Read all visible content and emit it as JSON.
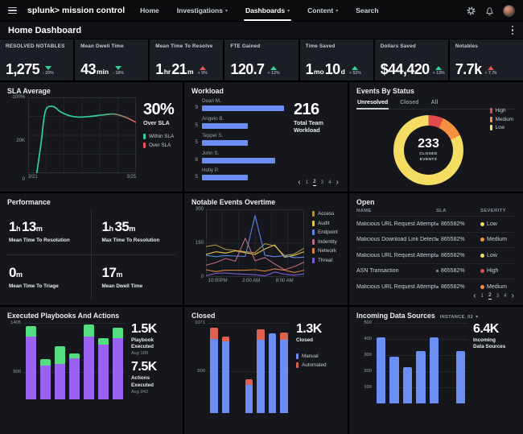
{
  "colors": {
    "green": "#2ed196",
    "red": "#e05656",
    "blue": "#6c8df2",
    "purple": "#9a62f0",
    "bar_green": "#55dd82",
    "salmon": "#e0604f",
    "yellow": "#f5dd64",
    "orange": "#f69141",
    "high_red": "#e24b4b"
  },
  "nav": {
    "logo": "splunk>",
    "logo_suffix": "mission control",
    "items": [
      {
        "label": "Home"
      },
      {
        "label": "Investigations",
        "dropdown": true
      },
      {
        "label": "Dashboards",
        "dropdown": true,
        "active": true
      },
      {
        "label": "Content",
        "dropdown": true
      },
      {
        "label": "Search"
      }
    ]
  },
  "header": {
    "title": "Home Dashboard"
  },
  "kpis": [
    {
      "label": "RESOLVED NOTABLES",
      "parts": [
        {
          "n": "1,275"
        }
      ],
      "trend": "down",
      "trend_color": "green",
      "delta": "- 20%"
    },
    {
      "label": "Mean Dwell Time",
      "parts": [
        {
          "n": "43",
          "u": "min"
        }
      ],
      "trend": "down",
      "trend_color": "green",
      "delta": "- 18%"
    },
    {
      "label": "Mean Time To Resolve",
      "parts": [
        {
          "n": "1",
          "u": "hr"
        },
        {
          "n": "21",
          "u": "m"
        }
      ],
      "trend": "up",
      "trend_color": "red",
      "delta": "+ 9%"
    },
    {
      "label": "FTE Gained",
      "parts": [
        {
          "n": "120.7"
        }
      ],
      "trend": "up",
      "trend_color": "green",
      "delta": "+ 12%"
    },
    {
      "label": "Time Saved",
      "parts": [
        {
          "n": "1",
          "u": "mo"
        },
        {
          "n": "10",
          "u": "d"
        }
      ],
      "trend": "up",
      "trend_color": "green",
      "delta": "+ 52%"
    },
    {
      "label": "Dollars Saved",
      "parts": [
        {
          "n": "$44,420"
        }
      ],
      "trend": "up",
      "trend_color": "green",
      "delta": "+ 13%"
    },
    {
      "label": "Notables",
      "parts": [
        {
          "n": "7.7k"
        }
      ],
      "trend": "up",
      "trend_color": "red",
      "delta": "+ 7.7k"
    }
  ],
  "panels": {
    "sla": {
      "title": "SLA Average",
      "big_value": "30%",
      "big_label": "Over SLA",
      "legend": [
        {
          "label": "Within SLA",
          "color": "#2ed196"
        },
        {
          "label": "Over SLA",
          "color": "#e05656"
        }
      ],
      "chart_data": {
        "type": "line",
        "yticks": [
          {
            "label": "-100%",
            "pos": 0
          },
          {
            "label": "20K",
            "pos": 53
          },
          {
            "label": "0",
            "pos": 100
          }
        ],
        "xticks": [
          "3/21",
          "3/25"
        ],
        "gradient": [
          [
            0,
            "#2ed196"
          ],
          [
            0.62,
            "#2ed196"
          ],
          [
            1,
            "#e05656"
          ]
        ],
        "points": [
          [
            8,
            0
          ],
          [
            12,
            40
          ],
          [
            16,
            82
          ],
          [
            23,
            88
          ],
          [
            30,
            81
          ],
          [
            38,
            76
          ],
          [
            46,
            74
          ],
          [
            58,
            75
          ],
          [
            70,
            77
          ],
          [
            80,
            78
          ],
          [
            90,
            74
          ],
          [
            100,
            67
          ]
        ]
      }
    },
    "workload": {
      "title": "Workload",
      "big_value": "216",
      "big_label": "Total Team Workload",
      "chart_data": {
        "type": "bar-h",
        "bar_color": "#6c8df2",
        "max": 9.5,
        "rows": [
          {
            "name": "Dean M.",
            "value": 9
          },
          {
            "name": "Angelo B.",
            "value": 5
          },
          {
            "name": "Teppei S.",
            "value": 5
          },
          {
            "name": "John S.",
            "value": 8
          },
          {
            "name": "Holly P.",
            "value": 5
          }
        ]
      },
      "pagination": {
        "prev": "‹",
        "next": "›",
        "pages": [
          "1",
          "2",
          "3",
          "4"
        ],
        "active": "2"
      }
    },
    "events": {
      "title": "Events By Status",
      "tabs": [
        {
          "label": "Unresolved",
          "active": true
        },
        {
          "label": "Closed"
        },
        {
          "label": "All"
        }
      ],
      "center_value": "233",
      "center_label": "CLOSED EVENTS",
      "chart_data": {
        "type": "pie",
        "slices": [
          {
            "label": "High",
            "value": 7,
            "color": "#e24b4b"
          },
          {
            "label": "Medium",
            "value": 11,
            "color": "#f69141"
          },
          {
            "label": "Low",
            "value": 82,
            "color": "#f5dd64"
          }
        ]
      }
    },
    "performance": {
      "title": "Performance",
      "stats": [
        {
          "parts": [
            {
              "n": "1",
              "u": "h"
            },
            {
              "n": "13",
              "u": "m"
            }
          ],
          "label": "Mean Time To Resolution"
        },
        {
          "parts": [
            {
              "n": "1",
              "u": "h"
            },
            {
              "n": "35",
              "u": "m"
            }
          ],
          "label": "Max Time To Resolution"
        },
        {
          "parts": [
            {
              "n": "0",
              "u": "m"
            }
          ],
          "label": "Mean Time To Triage"
        },
        {
          "parts": [
            {
              "n": "17",
              "u": "m"
            }
          ],
          "label": "Mean Dwell Time"
        }
      ]
    },
    "overtime": {
      "title": "Notable Events Overtime",
      "chart_data": {
        "type": "line-multi",
        "ylim": [
          0,
          300
        ],
        "yticks": [
          {
            "label": "300",
            "pos": 0
          },
          {
            "label": "150",
            "pos": 50
          },
          {
            "label": "0",
            "pos": 100
          }
        ],
        "xticks": [
          {
            "label": "10:00PM",
            "pos": 12
          },
          {
            "label": "2:00 AM",
            "pos": 46
          },
          {
            "label": "8:00 AM",
            "pos": 80
          }
        ],
        "series": [
          {
            "name": "Access",
            "color": "#ad9141",
            "values": [
              135,
              142,
              122,
              118,
              112,
              108,
              148,
              138,
              95,
              102,
              128
            ]
          },
          {
            "name": "Audit",
            "color": "#e6c84e",
            "values": [
              100,
              112,
              106,
              116,
              108,
              100,
              124,
              142,
              88,
              96,
              112
            ]
          },
          {
            "name": "Endpoint",
            "color": "#5d85e6",
            "values": [
              96,
              90,
              95,
              93,
              91,
              272,
              96,
              90,
              95,
              86,
              88
            ]
          },
          {
            "name": "Indentity",
            "color": "#c06a80",
            "values": [
              52,
              64,
              82,
              70,
              172,
              72,
              86,
              58,
              32,
              46,
              66
            ]
          },
          {
            "name": "Network",
            "color": "#d9823f",
            "values": [
              32,
              24,
              30,
              30,
              30,
              32,
              26,
              36,
              30,
              20,
              30
            ]
          },
          {
            "name": "Threat",
            "color": "#8059d6",
            "values": [
              6,
              16,
              18,
              14,
              12,
              10,
              5,
              22,
              12,
              8,
              14
            ]
          }
        ]
      }
    },
    "open": {
      "title": "Open",
      "columns": [
        "NAME",
        "SLA",
        "SEVERITY"
      ],
      "rows": [
        {
          "name": "Malicious URL Request Attempt",
          "sla": "865582%",
          "severity": "Low",
          "severity_color": "#f5dd64"
        },
        {
          "name": "Malicious Download Link Detected",
          "sla": "865582%",
          "severity": "Medium",
          "severity_color": "#f69141"
        },
        {
          "name": "Malicious URL Request Attempt",
          "sla": "865582%",
          "severity": "Low",
          "severity_color": "#f5dd64"
        },
        {
          "name": "ASN Transaction",
          "sla": "865582%",
          "severity": "High",
          "severity_color": "#e24b4b"
        },
        {
          "name": "Malicious URL Request Attempt",
          "sla": "865582%",
          "severity": "Medium",
          "severity_color": "#f69141"
        }
      ],
      "pagination": {
        "prev": "‹",
        "next": "›",
        "pages": [
          "1",
          "2",
          "3",
          "4"
        ],
        "active": "2"
      }
    },
    "playbooks": {
      "title": "Executed Playbooks And Actions",
      "stats": [
        {
          "value": "1.5K",
          "label": "Playbook Executed",
          "sub": "Avg 189"
        },
        {
          "value": "7.5K",
          "label": "Actions Executed",
          "sub": "Avg 942"
        }
      ],
      "chart_data": {
        "type": "bar-stacked",
        "ylim": 1405,
        "yticks": [
          [
            1405,
            "1405"
          ],
          [
            500,
            "500"
          ]
        ],
        "colors": [
          "#9a62f0",
          "#55dd82"
        ],
        "series_names": [
          "Playbooks",
          "Actions"
        ],
        "bars": [
          [
            1150,
            200
          ],
          [
            620,
            120
          ],
          [
            650,
            330
          ],
          [
            750,
            90
          ],
          [
            1150,
            230
          ],
          [
            1000,
            120
          ],
          [
            1130,
            190
          ]
        ]
      }
    },
    "closed": {
      "title": "Closed",
      "big_value": "1.3K",
      "big_label": "Closed",
      "legend": [
        {
          "label": "Manual",
          "color": "#6c8df2"
        },
        {
          "label": "Automated",
          "color": "#e0604f"
        }
      ],
      "chart_data": {
        "type": "bar-stacked",
        "ylim": 1071,
        "yticks": [
          [
            1071,
            "1071"
          ],
          [
            500,
            "500"
          ]
        ],
        "colors": [
          "#6c8df2",
          "#e0604f"
        ],
        "bars": [
          [
            880,
            130
          ],
          [
            850,
            60
          ],
          [
            0,
            0
          ],
          [
            330,
            70
          ],
          [
            870,
            120
          ],
          [
            950,
            0
          ],
          [
            870,
            90
          ]
        ]
      }
    },
    "incoming": {
      "title": "Incoming Data Sources",
      "instance": "INSTANCE_02",
      "big_value": "6.4K",
      "big_label": "Incoming Data Sources",
      "chart_data": {
        "type": "bar",
        "ylim": 500,
        "yticks": [
          [
            500,
            "500"
          ],
          [
            400,
            "400"
          ],
          [
            300,
            "300"
          ],
          [
            200,
            "200"
          ],
          [
            100,
            "100"
          ]
        ],
        "colors": [
          "#6c8df2"
        ],
        "bars": [
          [
            410
          ],
          [
            290
          ],
          [
            225
          ],
          [
            325
          ],
          [
            410
          ],
          [
            0
          ],
          [
            325
          ]
        ]
      }
    }
  }
}
